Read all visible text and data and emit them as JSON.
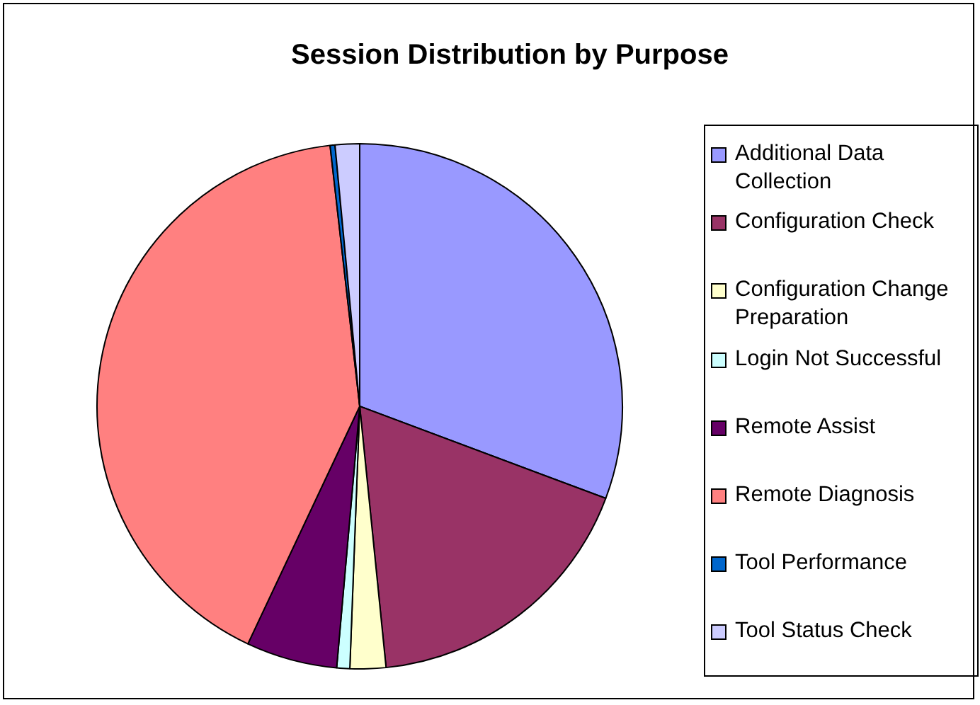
{
  "chart_data": {
    "type": "pie",
    "title": "Session Distribution by Purpose",
    "categories": [
      "Additional Data Collection",
      "Configuration Check",
      "Configuration Change Preparation",
      "Login Not Successful",
      "Remote Assist",
      "Remote Diagnosis",
      "Tool Performance",
      "Tool Status Check"
    ],
    "values": [
      30.7,
      17.7,
      2.2,
      0.8,
      5.6,
      41.2,
      0.3,
      1.5
    ],
    "colors": [
      "#9999ff",
      "#993366",
      "#ffffcc",
      "#ccffff",
      "#660066",
      "#ff8080",
      "#0066cc",
      "#ccccff"
    ],
    "legend": "right"
  }
}
